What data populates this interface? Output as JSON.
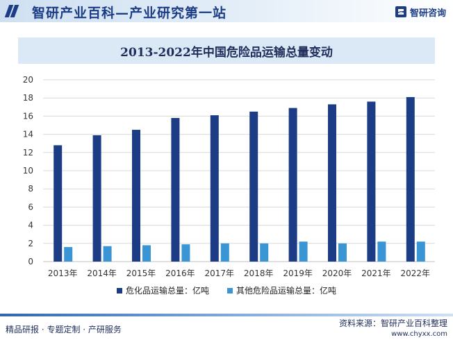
{
  "header": {
    "title": "智研产业百科—产业研究第一站",
    "brand": "智研咨询",
    "brand_icon": "zhiyan-logo-icon"
  },
  "footer": {
    "left": "精品研报 · 专题定制 · 产研服务",
    "source": "资料来源：智研产业百科整理",
    "url": "www.chyxx.com"
  },
  "colors": {
    "primary": "#1c3d85",
    "secondary": "#3a95d4",
    "title_band": "#dbe8f6"
  },
  "chart_data": {
    "type": "bar",
    "title": "2013-2022年中国危险品运输总量变动",
    "categories": [
      "2013年",
      "2014年",
      "2015年",
      "2016年",
      "2017年",
      "2018年",
      "2019年",
      "2020年",
      "2021年",
      "2022年"
    ],
    "series": [
      {
        "name": "危化品运输总量：亿吨",
        "color": "#1c3d85",
        "values": [
          12.8,
          13.9,
          14.5,
          15.8,
          16.1,
          16.5,
          16.9,
          17.3,
          17.6,
          18.1
        ]
      },
      {
        "name": "其他危险品运输总量：亿吨",
        "color": "#3a95d4",
        "values": [
          1.6,
          1.7,
          1.8,
          1.9,
          2.0,
          2.0,
          2.2,
          2.0,
          2.2,
          2.2
        ]
      }
    ],
    "ylim": [
      0,
      20
    ],
    "yticks": [
      "0",
      "2",
      "4",
      "6",
      "8",
      "10",
      "12",
      "14",
      "16",
      "18",
      "20"
    ],
    "grid": true,
    "legend_position": "bottom"
  }
}
